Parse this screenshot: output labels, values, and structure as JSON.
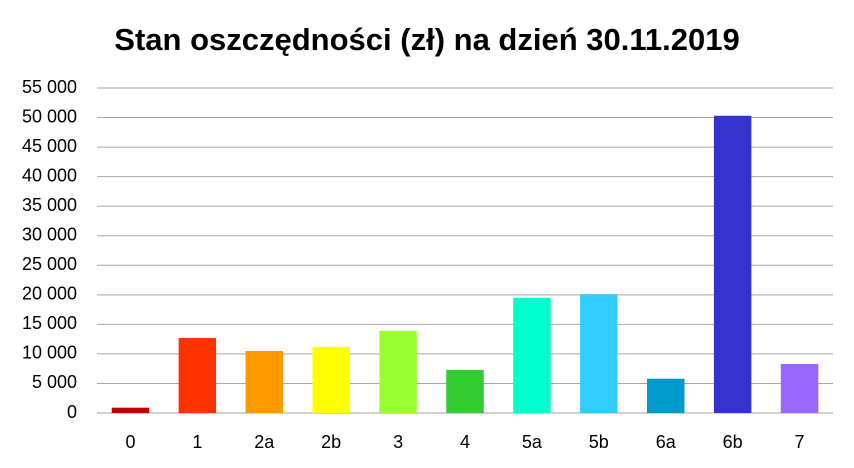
{
  "chart_data": {
    "type": "bar",
    "title": "Stan oszczędności (zł) na dzień 30.11.2019",
    "categories": [
      "0",
      "1",
      "2a",
      "2b",
      "3",
      "4",
      "5a",
      "5b",
      "6a",
      "6b",
      "7"
    ],
    "values": [
      900,
      12700,
      10500,
      11200,
      13900,
      7300,
      19500,
      20100,
      5800,
      50300,
      8300
    ],
    "colors": [
      "#c00000",
      "#ff3300",
      "#ff9900",
      "#ffff00",
      "#99ff33",
      "#33cc33",
      "#00ffcc",
      "#33ccff",
      "#0099cc",
      "#3333cc",
      "#9966ff"
    ],
    "ylim": [
      0,
      55000
    ],
    "yticks": [
      0,
      {
        "value": 5000,
        "label": "5 000"
      },
      {
        "value": 10000,
        "label": "10 000"
      },
      {
        "value": 15000,
        "label": "15 000"
      },
      {
        "value": 20000,
        "label": "20 000"
      },
      {
        "value": 25000,
        "label": "25 000"
      },
      {
        "value": 30000,
        "label": "30 000"
      },
      {
        "value": 35000,
        "label": "35 000"
      },
      {
        "value": 40000,
        "label": "40 000"
      },
      {
        "value": 45000,
        "label": "45 000"
      },
      {
        "value": 50000,
        "label": "50 000"
      },
      {
        "value": 55000,
        "label": "55 000"
      }
    ],
    "grid": true
  }
}
